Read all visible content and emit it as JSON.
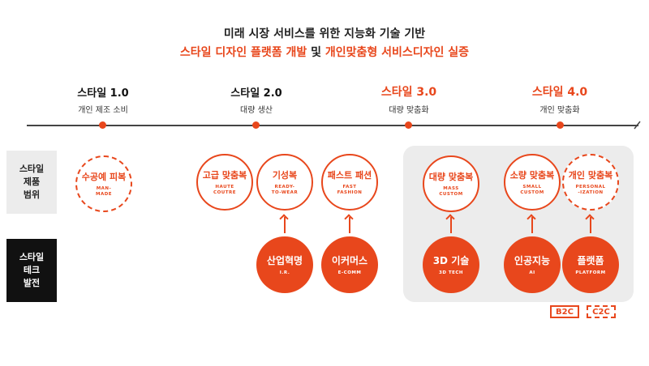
{
  "title": {
    "line1": "미래 시장 서비스를 위한 지능화 기술 기반",
    "line2_part1": "스타일 디자인 플랫폼 개발",
    "line2_part2": " 및 ",
    "line2_part3": "개인맞춤형 서비스디자인 실증"
  },
  "stages": [
    {
      "title": "스타일 1.0",
      "subtitle": "개인 제조 소비",
      "highlight": false
    },
    {
      "title": "스타일 2.0",
      "subtitle": "대량 생산",
      "highlight": false
    },
    {
      "title": "스타일 3.0",
      "subtitle": "대량 맞춤화",
      "highlight": true
    },
    {
      "title": "스타일 4.0",
      "subtitle": "개인 맞춤화",
      "highlight": true
    }
  ],
  "row_labels": {
    "product": "스타일\n제품\n범위",
    "tech": "스타일\n테크\n발전"
  },
  "products": [
    {
      "main": "수공예 피복",
      "sub": "MAN-\nMADE",
      "style": "dashed"
    },
    {
      "main": "고급 맞춤복",
      "sub": "HAUTE\nCOUTRE",
      "style": "solid-border"
    },
    {
      "main": "기성복",
      "sub": "READY-\nTO-WEAR",
      "style": "solid-border"
    },
    {
      "main": "패스트 패션",
      "sub": "FAST\nFASHION",
      "style": "solid-border"
    },
    {
      "main": "대량 맞춤복",
      "sub": "MASS\nCUSTOM",
      "style": "solid-border"
    },
    {
      "main": "소량 맞춤복",
      "sub": "SMALL\nCUSTOM",
      "style": "solid-border"
    },
    {
      "main": "개인 맞춤복",
      "sub": "PERSONAL\n-IZATION",
      "style": "dashed"
    }
  ],
  "techs": [
    {
      "main": "산업혁명",
      "sub": "I.R."
    },
    {
      "main": "이커머스",
      "sub": "E-COMM"
    },
    {
      "main": "3D 기술",
      "sub": "3D TECH"
    },
    {
      "main": "인공지능",
      "sub": "AI"
    },
    {
      "main": "플랫폼",
      "sub": "PLATFORM"
    }
  ],
  "legend": {
    "b2c": "B2C",
    "c2c": "C2C"
  },
  "colors": {
    "accent": "#e8471c",
    "dark": "#111111",
    "panel": "#ececec"
  }
}
